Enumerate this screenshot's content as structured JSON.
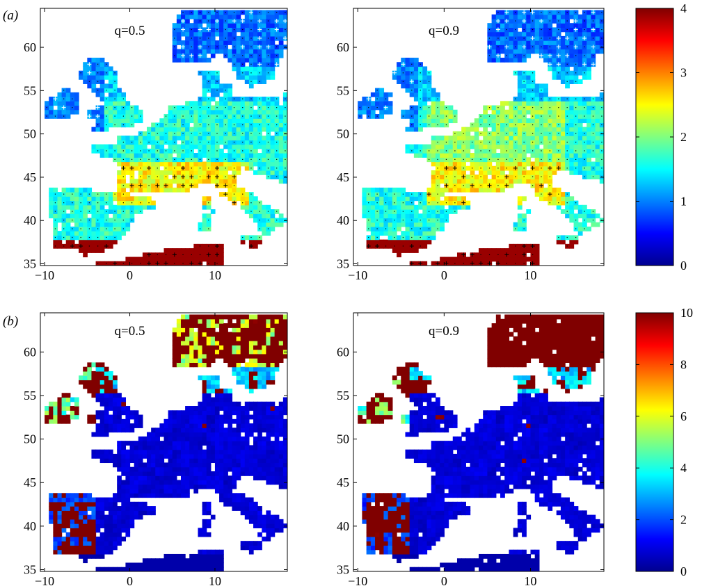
{
  "figure": {
    "panel_labels": [
      "(a)",
      "(b)"
    ]
  },
  "maps": [
    {
      "row": 0,
      "col": 0,
      "label": "q=0.5",
      "q": 0.5,
      "x_ticks": [
        -10,
        0,
        10
      ],
      "y_ticks": [
        35,
        40,
        45,
        50,
        55,
        60
      ],
      "xlim": [
        -10.5,
        18.5
      ],
      "ylim": [
        34.8,
        64.5
      ]
    },
    {
      "row": 0,
      "col": 1,
      "label": "q=0.9",
      "q": 0.9,
      "x_ticks": [
        -10,
        0,
        10
      ],
      "y_ticks": [
        35,
        40,
        45,
        50,
        55,
        60
      ],
      "xlim": [
        -10.5,
        18.5
      ],
      "ylim": [
        34.8,
        64.5
      ]
    },
    {
      "row": 1,
      "col": 0,
      "label": "q=0.5",
      "q": 0.5,
      "x_ticks": [
        -10,
        0,
        10
      ],
      "y_ticks": [
        35,
        40,
        45,
        50,
        55,
        60
      ],
      "xlim": [
        -10.5,
        18.5
      ],
      "ylim": [
        34.8,
        64.5
      ]
    },
    {
      "row": 1,
      "col": 1,
      "label": "q=0.9",
      "q": 0.9,
      "x_ticks": [
        -10,
        0,
        10
      ],
      "y_ticks": [
        35,
        40,
        45,
        50,
        55,
        60
      ],
      "xlim": [
        -10.5,
        18.5
      ],
      "ylim": [
        34.8,
        64.5
      ]
    }
  ],
  "colorbars": [
    {
      "row": 0,
      "ticks": [
        0,
        1,
        2,
        3,
        4
      ],
      "range": [
        0,
        4
      ]
    },
    {
      "row": 1,
      "ticks": [
        0,
        2,
        4,
        6,
        8,
        10
      ],
      "range": [
        0,
        10
      ]
    }
  ],
  "colormap": "jet",
  "colors": {
    "jet": [
      "#00008f",
      "#0000ff",
      "#0080ff",
      "#00ffff",
      "#80ff80",
      "#ffff00",
      "#ff8000",
      "#ff0000",
      "#800000"
    ],
    "land_missing": "#ffffff",
    "marker_sig": "#000000",
    "marker_white": "#ffffff"
  }
}
